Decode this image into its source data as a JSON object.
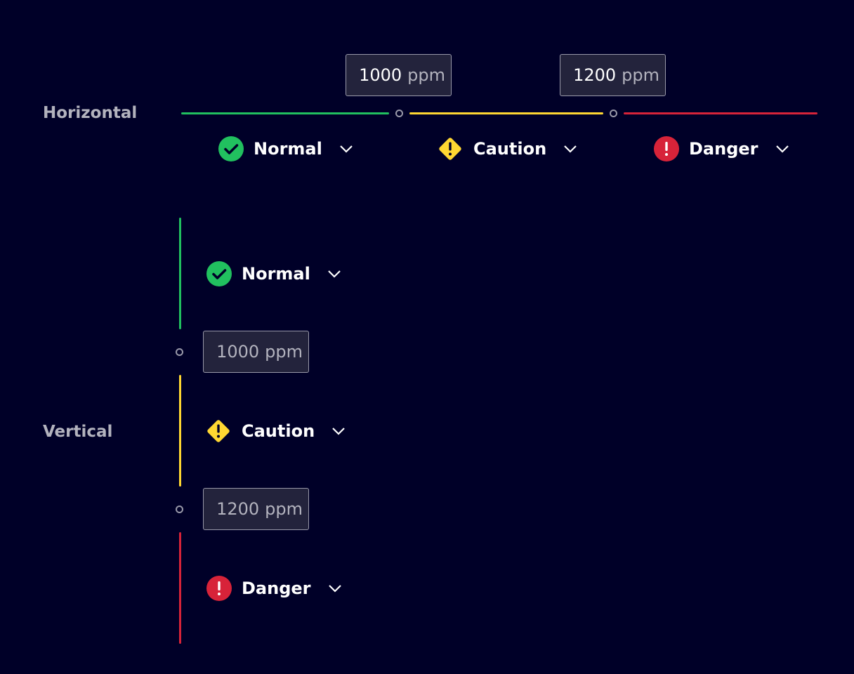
{
  "colors": {
    "normal": "#21c05f",
    "caution": "#ffd732",
    "danger": "#d72339"
  },
  "horizontal": {
    "label": "Horizontal",
    "thresholds": [
      {
        "value": "1000",
        "unit": "ppm"
      },
      {
        "value": "1200",
        "unit": "ppm"
      }
    ],
    "items": [
      {
        "label": "Normal",
        "icon": "check-circle-icon"
      },
      {
        "label": "Caution",
        "icon": "warning-diamond-icon"
      },
      {
        "label": "Danger",
        "icon": "alert-circle-icon"
      }
    ]
  },
  "vertical": {
    "label": "Vertical",
    "thresholds": [
      {
        "value": "1000",
        "unit": "ppm"
      },
      {
        "value": "1200",
        "unit": "ppm"
      }
    ],
    "items": [
      {
        "label": "Normal",
        "icon": "check-circle-icon"
      },
      {
        "label": "Caution",
        "icon": "warning-diamond-icon"
      },
      {
        "label": "Danger",
        "icon": "alert-circle-icon"
      }
    ]
  }
}
